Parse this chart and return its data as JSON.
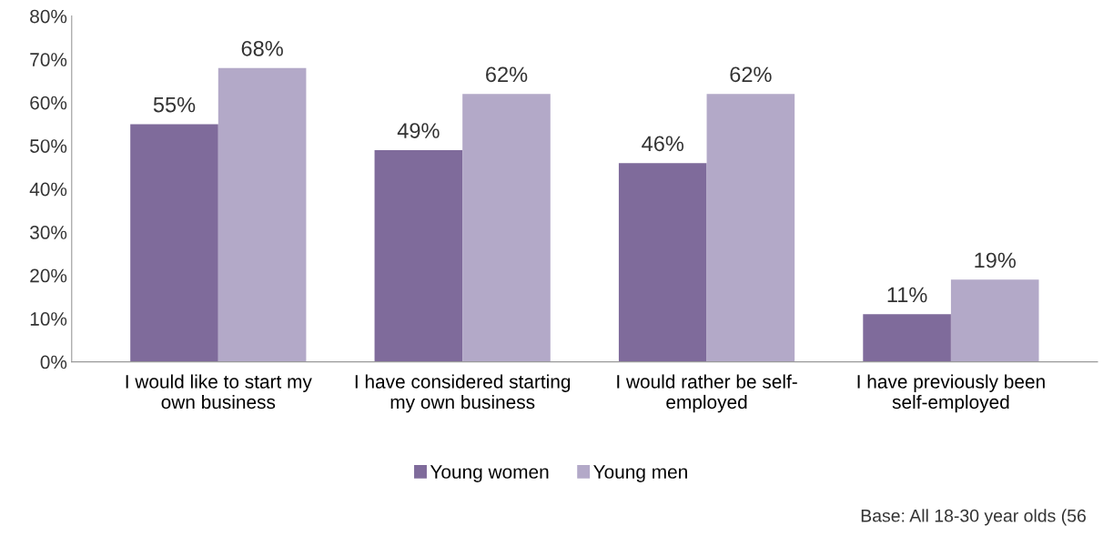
{
  "chart_data": {
    "type": "bar",
    "categories": [
      "I would like to start my own business",
      "I have considered starting my own business",
      "I would rather be self-employed",
      "I have previously been self-employed"
    ],
    "series": [
      {
        "name": "Young women",
        "color": "#7f6b9b",
        "values": [
          55,
          49,
          46,
          11
        ],
        "value_labels": [
          "55%",
          "49%",
          "46%",
          "11%"
        ]
      },
      {
        "name": "Young men",
        "color": "#b3a9c8",
        "values": [
          68,
          62,
          62,
          19
        ],
        "value_labels": [
          "68%",
          "62%",
          "62%",
          "19%"
        ]
      }
    ],
    "ylim": [
      0,
      80
    ],
    "yticks": [
      {
        "value": 0,
        "label": "0%"
      },
      {
        "value": 10,
        "label": "10%"
      },
      {
        "value": 20,
        "label": "20%"
      },
      {
        "value": 30,
        "label": "30%"
      },
      {
        "value": 40,
        "label": "40%"
      },
      {
        "value": 50,
        "label": "50%"
      },
      {
        "value": 60,
        "label": "60%"
      },
      {
        "value": 70,
        "label": "70%"
      },
      {
        "value": 80,
        "label": "80%"
      }
    ],
    "grid": false,
    "legend": "bottom",
    "annotations": [
      "Base: All 18-30 year olds (56"
    ]
  }
}
